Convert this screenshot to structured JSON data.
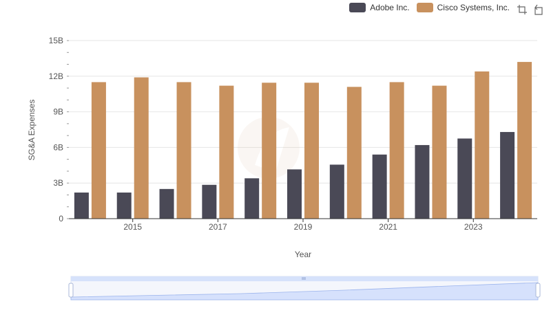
{
  "chart_data": {
    "type": "bar",
    "categories": [
      2014,
      2015,
      2016,
      2017,
      2018,
      2019,
      2020,
      2021,
      2022,
      2023,
      2024
    ],
    "x_tick_labels": [
      "2015",
      "2017",
      "2019",
      "2021",
      "2023"
    ],
    "series": [
      {
        "name": "Adobe Inc.",
        "color": "#4a4956",
        "values": [
          2200000000.0,
          2200000000.0,
          2500000000.0,
          2850000000.0,
          3400000000.0,
          4150000000.0,
          4550000000.0,
          5400000000.0,
          6200000000.0,
          6750000000.0,
          7300000000.0
        ]
      },
      {
        "name": "Cisco Systems, Inc.",
        "color": "#c8915e",
        "values": [
          11500000000.0,
          11900000000.0,
          11500000000.0,
          11200000000.0,
          11450000000.0,
          11450000000.0,
          11100000000.0,
          11500000000.0,
          11200000000.0,
          12400000000.0,
          13200000000.0
        ]
      }
    ],
    "xlabel": "Year",
    "ylabel": "SG&A Expenses",
    "ylim": [
      0,
      15000000000
    ],
    "yticks": [
      {
        "value": 0,
        "label": "0"
      },
      {
        "value": 3000000000,
        "label": "3B"
      },
      {
        "value": 6000000000,
        "label": "6B"
      },
      {
        "value": 9000000000,
        "label": "9B"
      },
      {
        "value": 12000000000,
        "label": "12B"
      },
      {
        "value": 15000000000,
        "label": "15B"
      }
    ],
    "grid": true,
    "legend_position": "top-right"
  },
  "toolbox": {
    "zoom_icon": "zoom-icon",
    "reset_icon": "restore-icon"
  },
  "slider": {
    "handle_icon": "drag-handle-icon"
  }
}
